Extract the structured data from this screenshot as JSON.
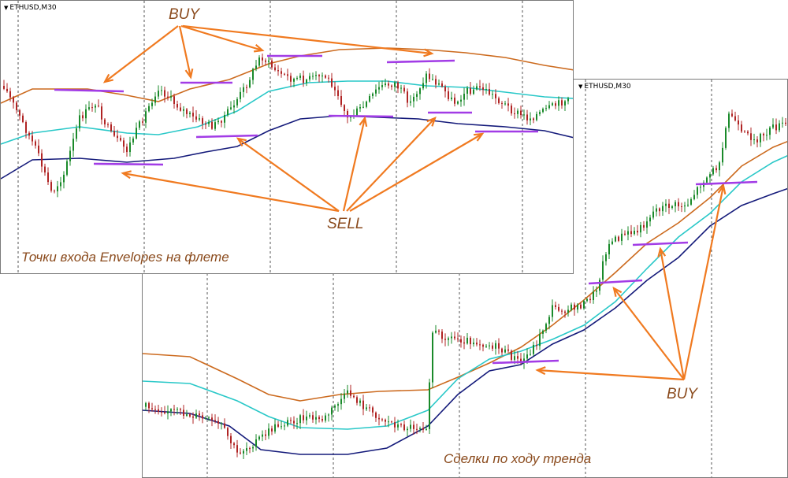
{
  "colors": {
    "background": "#ffffff",
    "panel_border": "#7a7a7a",
    "grid": "#555555",
    "candle_up": "#1a8a2a",
    "candle_down": "#b02424",
    "upper_envelope": "#cc6a1e",
    "middle_line": "#29c8c8",
    "lower_envelope": "#141a7a",
    "level_line": "#a23ce6",
    "arrow": "#f07a20",
    "label_text": "#8a4a1c"
  },
  "panels": [
    {
      "symbol": "ETHUSD,M30",
      "caption": "Точки входа Envelopes на флете",
      "chart_data": {
        "type": "candlestick",
        "market": "flat (range)",
        "indicators": [
          "upper envelope",
          "middle line",
          "lower envelope"
        ],
        "grid": "vertical dashed lines",
        "labels": [
          "BUY",
          "SELL"
        ],
        "buy_entries": 4,
        "sell_entries": 4
      }
    },
    {
      "symbol": "ETHUSD,M30",
      "caption": "Сделки по ходу тренда",
      "chart_data": {
        "type": "candlestick",
        "market": "uptrend",
        "indicators": [
          "upper envelope",
          "middle line",
          "lower envelope"
        ],
        "grid": "vertical dashed lines",
        "labels": [
          "BUY"
        ],
        "buy_entries": 4
      }
    }
  ],
  "annotations": {
    "buy_top": "BUY",
    "sell_mid": "SELL",
    "buy_bottom": "BUY"
  }
}
